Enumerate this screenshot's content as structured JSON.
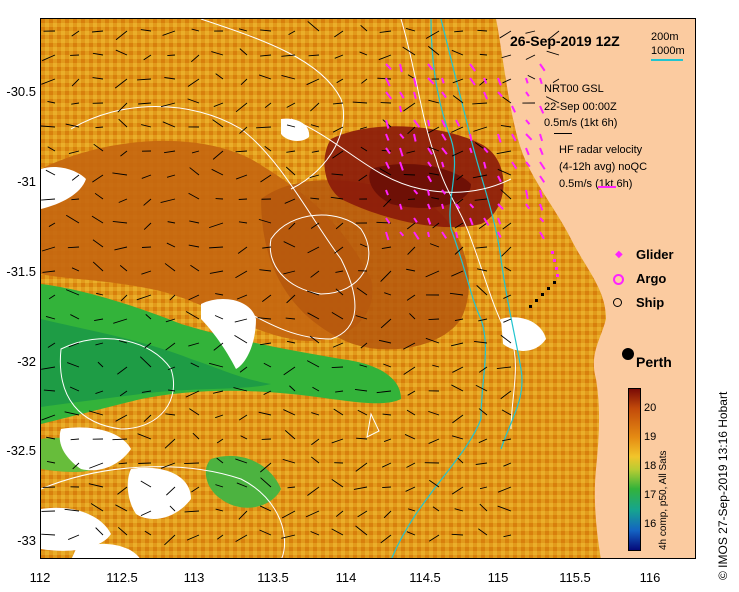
{
  "title": "26-Sep-2019 12Z",
  "depth_legend": {
    "a": "200m",
    "b": "1000m",
    "b_color": "#22c4cf"
  },
  "gsl": {
    "line1": "NRT00 GSL",
    "line2": "22-Sep 00:00Z",
    "line3": "0.5m/s (1kt 6h)"
  },
  "hf": {
    "line1": "HF radar velocity",
    "line2": "(4-12h avg) noQC",
    "line3": "0.5m/s (1kt 6h)"
  },
  "markers": {
    "glider": "Glider",
    "argo": "Argo",
    "ship": "Ship",
    "glider_color": "#ff22ff",
    "argo_color": "#ff22ff"
  },
  "city": "Perth",
  "y_ticks": [
    "-30.5",
    "-31",
    "-31.5",
    "-32",
    "-32.5",
    "-33"
  ],
  "x_ticks": [
    "112",
    "112.5",
    "113",
    "113.5",
    "114",
    "114.5",
    "115",
    "115.5",
    "116"
  ],
  "colorbar": {
    "ticks": [
      "20",
      "19",
      "18",
      "17",
      "16"
    ],
    "caption": "4h comp, p50, All Sats"
  },
  "credit": "© IMOS 27-Sep-2019 13:16 Hobart",
  "colors": {
    "land": "#fbcba0",
    "sst_warm": "#d97f0f",
    "sst_hot": "#8b1a0a",
    "sst_cool": "#2fae2f"
  }
}
